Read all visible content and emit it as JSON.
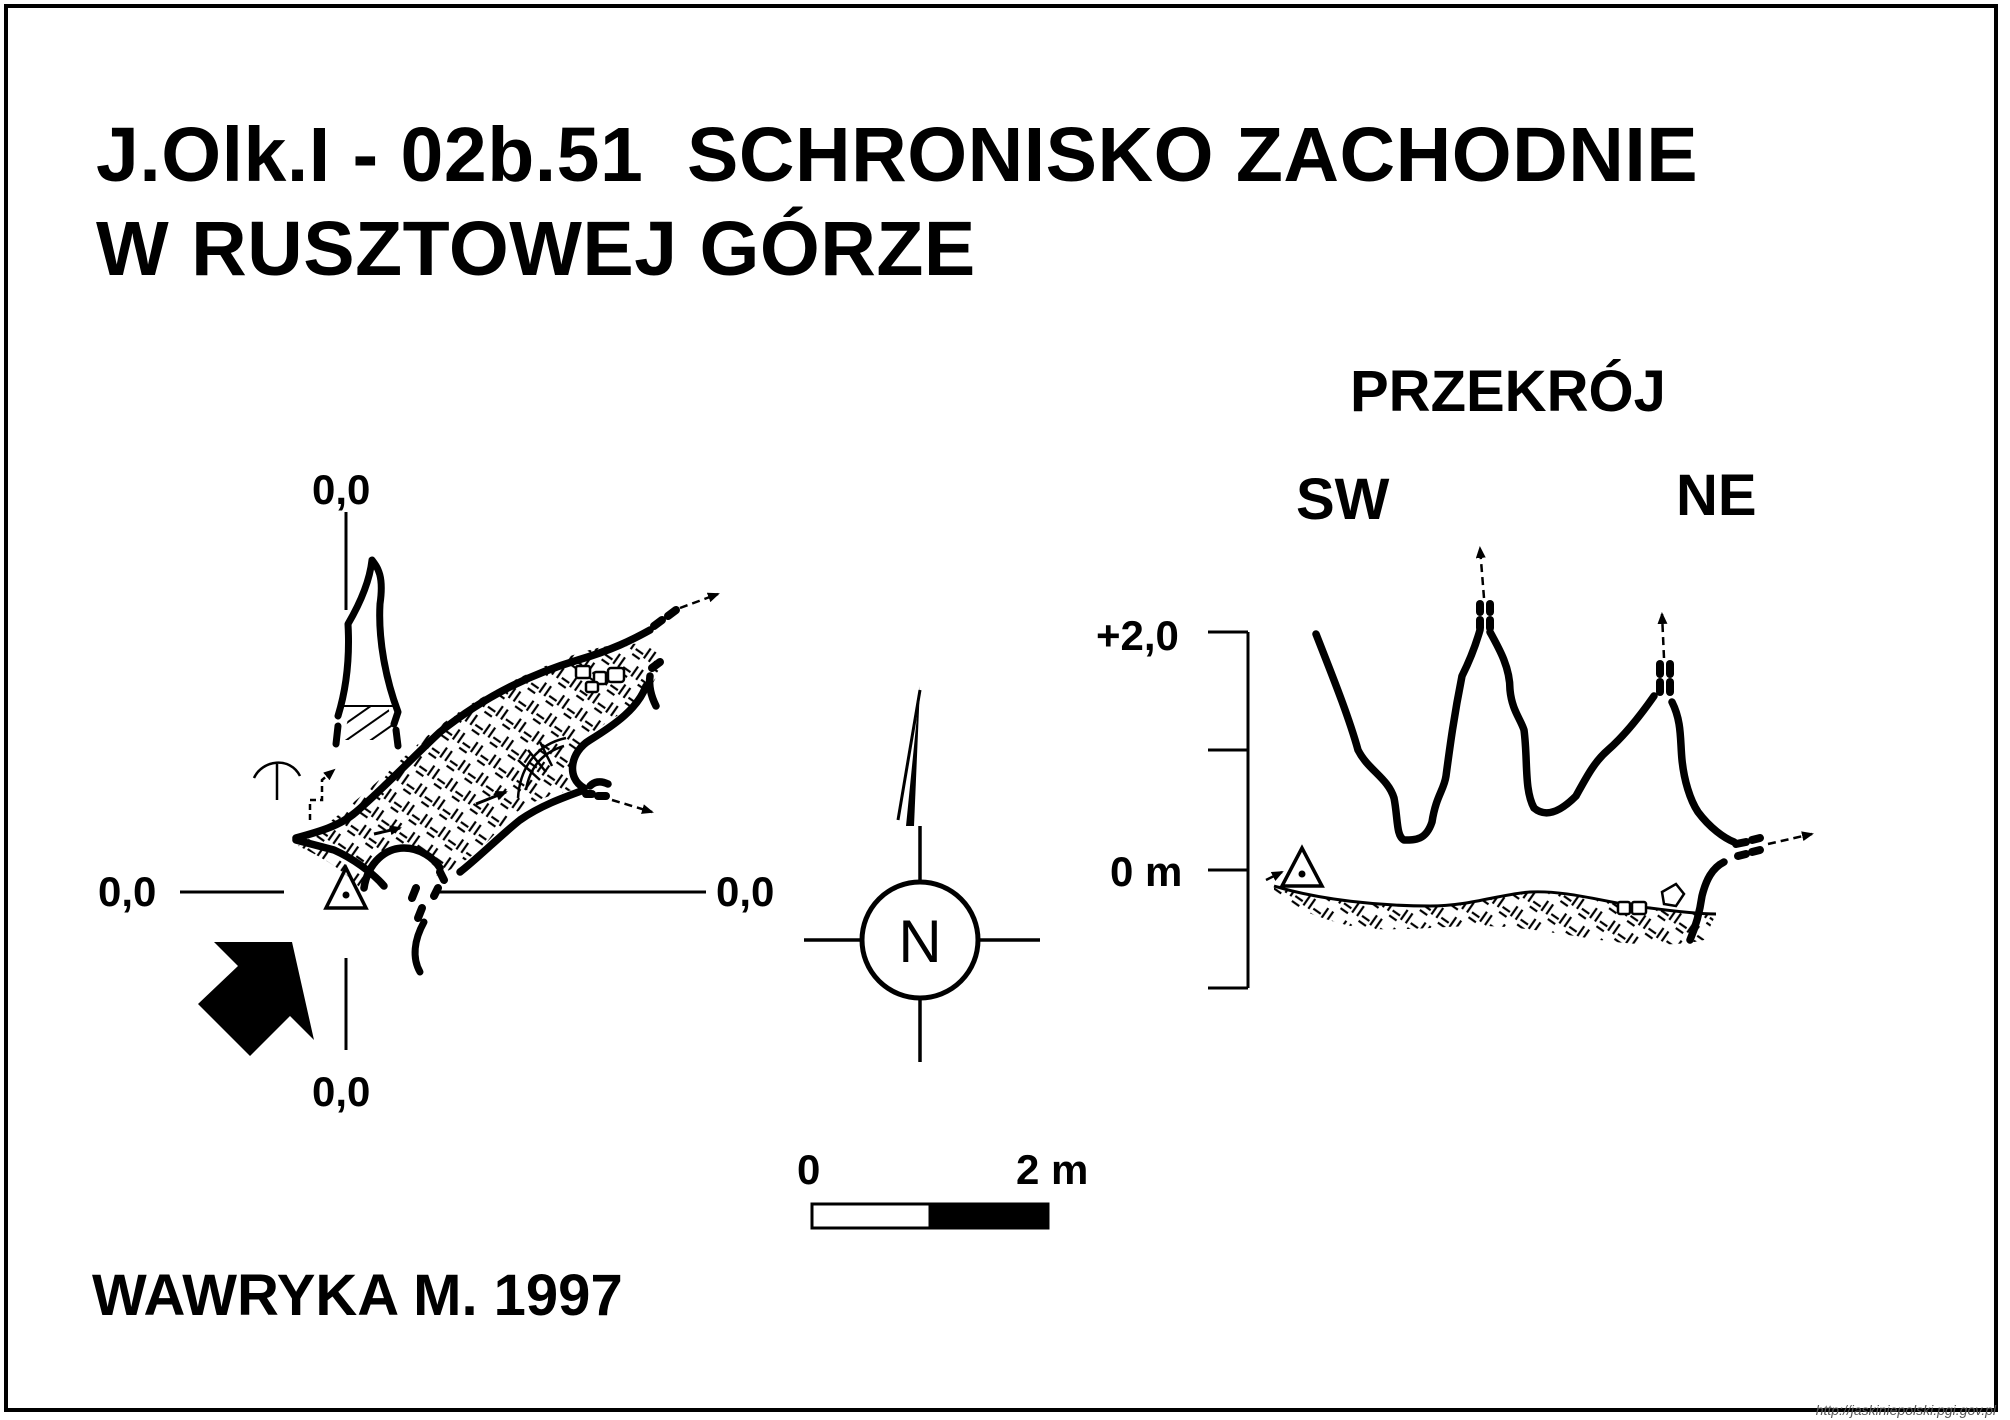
{
  "title": {
    "line1": "J.Olk.I - 02b.51  SCHRONISKO ZACHODNIE",
    "line2": "W RUSZTOWEJ GÓRZE"
  },
  "plan": {
    "datum_top": "0,0",
    "datum_left": "0,0",
    "datum_right": "0,0",
    "datum_bottom": "0,0",
    "north_label": "N"
  },
  "section": {
    "title": "PRZEKRÓJ",
    "left_dir": "SW",
    "right_dir": "NE",
    "tick_upper": "+2,0",
    "tick_zero": "0 m"
  },
  "scale_bar": {
    "start": "0",
    "end": "2 m"
  },
  "author": "WAWRYKA M. 1997",
  "source_url": "http://jaskiniepolski.pgi.gov.pl",
  "colors": {
    "ink": "#000000",
    "paper": "#ffffff"
  }
}
